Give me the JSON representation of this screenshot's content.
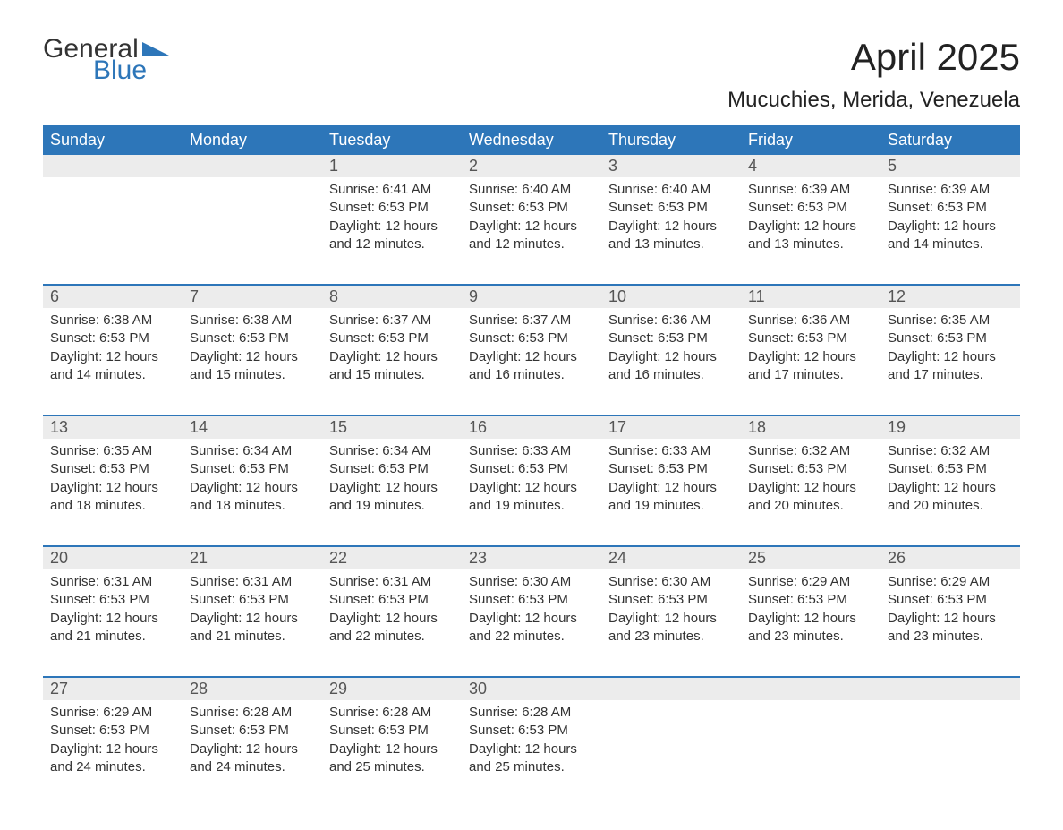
{
  "logo": {
    "text1": "General",
    "text2": "Blue",
    "flag_color": "#2d76b9"
  },
  "title": "April 2025",
  "location": "Mucuchies, Merida, Venezuela",
  "colors": {
    "header_bg": "#2d76b9",
    "header_fg": "#ffffff",
    "daynum_bg": "#ececec",
    "text": "#333333",
    "separator": "#2d76b9"
  },
  "day_names": [
    "Sunday",
    "Monday",
    "Tuesday",
    "Wednesday",
    "Thursday",
    "Friday",
    "Saturday"
  ],
  "weeks": [
    {
      "nums": [
        "",
        "",
        "1",
        "2",
        "3",
        "4",
        "5"
      ],
      "cells": [
        null,
        null,
        {
          "sunrise": "6:41 AM",
          "sunset": "6:53 PM",
          "daylight": "12 hours and 12 minutes."
        },
        {
          "sunrise": "6:40 AM",
          "sunset": "6:53 PM",
          "daylight": "12 hours and 12 minutes."
        },
        {
          "sunrise": "6:40 AM",
          "sunset": "6:53 PM",
          "daylight": "12 hours and 13 minutes."
        },
        {
          "sunrise": "6:39 AM",
          "sunset": "6:53 PM",
          "daylight": "12 hours and 13 minutes."
        },
        {
          "sunrise": "6:39 AM",
          "sunset": "6:53 PM",
          "daylight": "12 hours and 14 minutes."
        }
      ]
    },
    {
      "nums": [
        "6",
        "7",
        "8",
        "9",
        "10",
        "11",
        "12"
      ],
      "cells": [
        {
          "sunrise": "6:38 AM",
          "sunset": "6:53 PM",
          "daylight": "12 hours and 14 minutes."
        },
        {
          "sunrise": "6:38 AM",
          "sunset": "6:53 PM",
          "daylight": "12 hours and 15 minutes."
        },
        {
          "sunrise": "6:37 AM",
          "sunset": "6:53 PM",
          "daylight": "12 hours and 15 minutes."
        },
        {
          "sunrise": "6:37 AM",
          "sunset": "6:53 PM",
          "daylight": "12 hours and 16 minutes."
        },
        {
          "sunrise": "6:36 AM",
          "sunset": "6:53 PM",
          "daylight": "12 hours and 16 minutes."
        },
        {
          "sunrise": "6:36 AM",
          "sunset": "6:53 PM",
          "daylight": "12 hours and 17 minutes."
        },
        {
          "sunrise": "6:35 AM",
          "sunset": "6:53 PM",
          "daylight": "12 hours and 17 minutes."
        }
      ]
    },
    {
      "nums": [
        "13",
        "14",
        "15",
        "16",
        "17",
        "18",
        "19"
      ],
      "cells": [
        {
          "sunrise": "6:35 AM",
          "sunset": "6:53 PM",
          "daylight": "12 hours and 18 minutes."
        },
        {
          "sunrise": "6:34 AM",
          "sunset": "6:53 PM",
          "daylight": "12 hours and 18 minutes."
        },
        {
          "sunrise": "6:34 AM",
          "sunset": "6:53 PM",
          "daylight": "12 hours and 19 minutes."
        },
        {
          "sunrise": "6:33 AM",
          "sunset": "6:53 PM",
          "daylight": "12 hours and 19 minutes."
        },
        {
          "sunrise": "6:33 AM",
          "sunset": "6:53 PM",
          "daylight": "12 hours and 19 minutes."
        },
        {
          "sunrise": "6:32 AM",
          "sunset": "6:53 PM",
          "daylight": "12 hours and 20 minutes."
        },
        {
          "sunrise": "6:32 AM",
          "sunset": "6:53 PM",
          "daylight": "12 hours and 20 minutes."
        }
      ]
    },
    {
      "nums": [
        "20",
        "21",
        "22",
        "23",
        "24",
        "25",
        "26"
      ],
      "cells": [
        {
          "sunrise": "6:31 AM",
          "sunset": "6:53 PM",
          "daylight": "12 hours and 21 minutes."
        },
        {
          "sunrise": "6:31 AM",
          "sunset": "6:53 PM",
          "daylight": "12 hours and 21 minutes."
        },
        {
          "sunrise": "6:31 AM",
          "sunset": "6:53 PM",
          "daylight": "12 hours and 22 minutes."
        },
        {
          "sunrise": "6:30 AM",
          "sunset": "6:53 PM",
          "daylight": "12 hours and 22 minutes."
        },
        {
          "sunrise": "6:30 AM",
          "sunset": "6:53 PM",
          "daylight": "12 hours and 23 minutes."
        },
        {
          "sunrise": "6:29 AM",
          "sunset": "6:53 PM",
          "daylight": "12 hours and 23 minutes."
        },
        {
          "sunrise": "6:29 AM",
          "sunset": "6:53 PM",
          "daylight": "12 hours and 23 minutes."
        }
      ]
    },
    {
      "nums": [
        "27",
        "28",
        "29",
        "30",
        "",
        "",
        ""
      ],
      "cells": [
        {
          "sunrise": "6:29 AM",
          "sunset": "6:53 PM",
          "daylight": "12 hours and 24 minutes."
        },
        {
          "sunrise": "6:28 AM",
          "sunset": "6:53 PM",
          "daylight": "12 hours and 24 minutes."
        },
        {
          "sunrise": "6:28 AM",
          "sunset": "6:53 PM",
          "daylight": "12 hours and 25 minutes."
        },
        {
          "sunrise": "6:28 AM",
          "sunset": "6:53 PM",
          "daylight": "12 hours and 25 minutes."
        },
        null,
        null,
        null
      ]
    }
  ],
  "labels": {
    "sunrise": "Sunrise:",
    "sunset": "Sunset:",
    "daylight": "Daylight:"
  }
}
